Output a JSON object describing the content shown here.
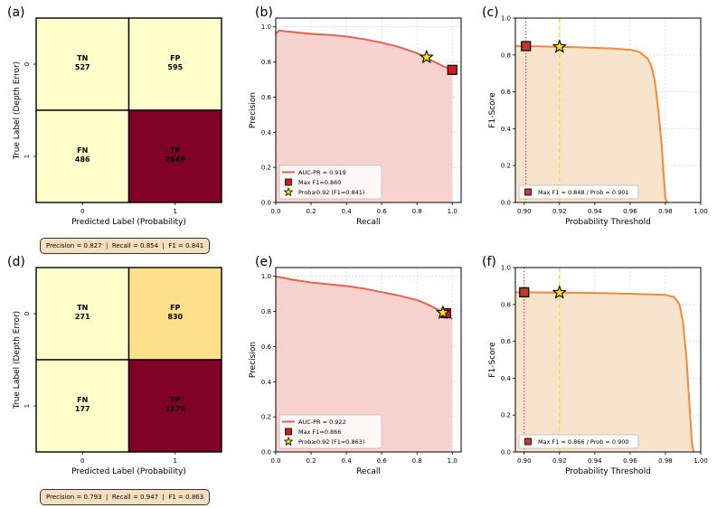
{
  "colors": {
    "cm_low": "#ffffcc",
    "cm_mid": "#fee08b",
    "cm_high": "#800026",
    "pr_line": "#e8614f",
    "pr_fill": "#f8d2cf",
    "f1_line": "#ef8a3a",
    "f1_fill": "#f8e3cd",
    "marker_red": "#d7191c",
    "marker_star": "#ffe200",
    "vline_dotted": "#d62728",
    "vline_dashed": "#ffd43b",
    "box_fill": "#f6dfc0"
  },
  "chart_data": [
    {
      "panel": "(a)",
      "type": "heatmap",
      "xlabel": "Predicted Label (Probability)",
      "ylabel": "True Label (Depth Error)",
      "x_ticks": [
        "0",
        "1"
      ],
      "y_ticks": [
        "0",
        "1"
      ],
      "cells": [
        {
          "label": "TN",
          "value": 527,
          "row": 0,
          "col": 0,
          "shade": "low"
        },
        {
          "label": "FP",
          "value": 595,
          "row": 0,
          "col": 1,
          "shade": "low"
        },
        {
          "label": "FN",
          "value": 486,
          "row": 1,
          "col": 0,
          "shade": "low"
        },
        {
          "label": "TP",
          "value": 2849,
          "row": 1,
          "col": 1,
          "shade": "high"
        }
      ],
      "metrics": "Precision = 0.827  |  Recall = 0.854  |  F1 = 0.841"
    },
    {
      "panel": "(b)",
      "type": "area",
      "xlabel": "Recall",
      "ylabel": "Precision",
      "xlim": [
        0,
        1.05
      ],
      "ylim": [
        0,
        1.05
      ],
      "x_ticks": [
        "0.0",
        "0.2",
        "0.4",
        "0.6",
        "0.8",
        "1.0"
      ],
      "y_ticks": [
        "0.0",
        "0.2",
        "0.4",
        "0.6",
        "0.8",
        "1.0"
      ],
      "grid": true,
      "x": [
        0.0,
        0.02,
        0.05,
        0.1,
        0.2,
        0.3,
        0.4,
        0.5,
        0.6,
        0.7,
        0.8,
        0.85,
        0.9,
        0.95,
        1.0
      ],
      "y": [
        0.96,
        0.98,
        0.975,
        0.97,
        0.96,
        0.955,
        0.945,
        0.93,
        0.91,
        0.885,
        0.85,
        0.825,
        0.8,
        0.775,
        0.755
      ],
      "markers": [
        {
          "type": "square",
          "x": 1.0,
          "y": 0.755
        },
        {
          "type": "star",
          "x": 0.854,
          "y": 0.827
        }
      ],
      "legend": [
        "AUC-PR = 0.919",
        "Max F1=0.860",
        "Prob≥0.92 (F1=0.841)"
      ],
      "legend_position": "lower-left"
    },
    {
      "panel": "(c)",
      "type": "area",
      "xlabel": "Probability Threshold",
      "ylabel": "F1-Score",
      "xlim": [
        0.895,
        1.0
      ],
      "ylim": [
        0,
        1.0
      ],
      "x_ticks": [
        "0.90",
        "0.92",
        "0.94",
        "0.96",
        "0.98",
        "1.00"
      ],
      "x_tick_values": [
        0.9,
        0.92,
        0.94,
        0.96,
        0.98,
        1.0
      ],
      "y_ticks": [
        "0.0",
        "0.2",
        "0.4",
        "0.6",
        "0.8",
        "1.0"
      ],
      "grid": true,
      "x": [
        0.895,
        0.901,
        0.91,
        0.92,
        0.93,
        0.94,
        0.95,
        0.96,
        0.965,
        0.97,
        0.972,
        0.974,
        0.976,
        0.978,
        0.979,
        0.98,
        0.981
      ],
      "y": [
        0.848,
        0.848,
        0.846,
        0.844,
        0.842,
        0.838,
        0.835,
        0.828,
        0.818,
        0.78,
        0.74,
        0.66,
        0.5,
        0.3,
        0.15,
        0.02,
        0.0
      ],
      "vlines": [
        {
          "x": 0.901,
          "style": "dotted"
        },
        {
          "x": 0.92,
          "style": "dashed"
        }
      ],
      "markers": [
        {
          "type": "square",
          "x": 0.901,
          "y": 0.848
        },
        {
          "type": "star",
          "x": 0.92,
          "y": 0.844
        }
      ],
      "legend": [
        "Max F1 = 0.848 / Prob = 0.901"
      ],
      "legend_position": "lower-left"
    },
    {
      "panel": "(d)",
      "type": "heatmap",
      "xlabel": "Predicted Label (Probability)",
      "ylabel": "True Label (Depth Error)",
      "x_ticks": [
        "0",
        "1"
      ],
      "y_ticks": [
        "0",
        "1"
      ],
      "cells": [
        {
          "label": "TN",
          "value": 271,
          "row": 0,
          "col": 0,
          "shade": "low"
        },
        {
          "label": "FP",
          "value": 830,
          "row": 0,
          "col": 1,
          "shade": "mid"
        },
        {
          "label": "FN",
          "value": 177,
          "row": 1,
          "col": 0,
          "shade": "low"
        },
        {
          "label": "TP",
          "value": 3179,
          "row": 1,
          "col": 1,
          "shade": "high"
        }
      ],
      "metrics": "Precision = 0.793  |  Recall = 0.947  |  F1 = 0.863"
    },
    {
      "panel": "(e)",
      "type": "area",
      "xlabel": "Recall",
      "ylabel": "Precision",
      "xlim": [
        0,
        1.05
      ],
      "ylim": [
        0,
        1.05
      ],
      "x_ticks": [
        "0.0",
        "0.2",
        "0.4",
        "0.6",
        "0.8",
        "1.0"
      ],
      "y_ticks": [
        "0.0",
        "0.2",
        "0.4",
        "0.6",
        "0.8",
        "1.0"
      ],
      "grid": true,
      "x": [
        0.0,
        0.02,
        0.05,
        0.1,
        0.2,
        0.3,
        0.4,
        0.5,
        0.6,
        0.7,
        0.8,
        0.85,
        0.9,
        0.95,
        0.97,
        1.0
      ],
      "y": [
        1.0,
        0.995,
        0.99,
        0.98,
        0.965,
        0.955,
        0.945,
        0.93,
        0.91,
        0.89,
        0.865,
        0.845,
        0.82,
        0.795,
        0.785,
        0.755
      ],
      "markers": [
        {
          "type": "square",
          "x": 0.965,
          "y": 0.79
        },
        {
          "type": "star",
          "x": 0.947,
          "y": 0.793
        }
      ],
      "legend": [
        "AUC-PR = 0.922",
        "Max F1=0.866",
        "Prob≥0.92 (F1=0.863)"
      ],
      "legend_position": "lower-left"
    },
    {
      "panel": "(f)",
      "type": "area",
      "xlabel": "Probability Threshold",
      "ylabel": "F1-Score",
      "xlim": [
        0.895,
        1.0
      ],
      "ylim": [
        0,
        1.0
      ],
      "x_ticks": [
        "0.90",
        "0.92",
        "0.94",
        "0.96",
        "0.98",
        "1.00"
      ],
      "x_tick_values": [
        0.9,
        0.92,
        0.94,
        0.96,
        0.98,
        1.0
      ],
      "y_ticks": [
        "0.0",
        "0.2",
        "0.4",
        "0.6",
        "0.8",
        "1.0"
      ],
      "grid": true,
      "x": [
        0.895,
        0.9,
        0.92,
        0.94,
        0.96,
        0.97,
        0.98,
        0.985,
        0.988,
        0.99,
        0.992,
        0.994,
        0.995,
        0.996
      ],
      "y": [
        0.866,
        0.866,
        0.864,
        0.862,
        0.858,
        0.855,
        0.852,
        0.84,
        0.8,
        0.7,
        0.5,
        0.2,
        0.05,
        0.0
      ],
      "vlines": [
        {
          "x": 0.9,
          "style": "dotted"
        },
        {
          "x": 0.92,
          "style": "dashed"
        }
      ],
      "markers": [
        {
          "type": "square",
          "x": 0.9,
          "y": 0.866
        },
        {
          "type": "star",
          "x": 0.92,
          "y": 0.864
        }
      ],
      "legend": [
        "Max F1 = 0.866 / Prob = 0.900"
      ],
      "legend_position": "lower-left"
    }
  ]
}
